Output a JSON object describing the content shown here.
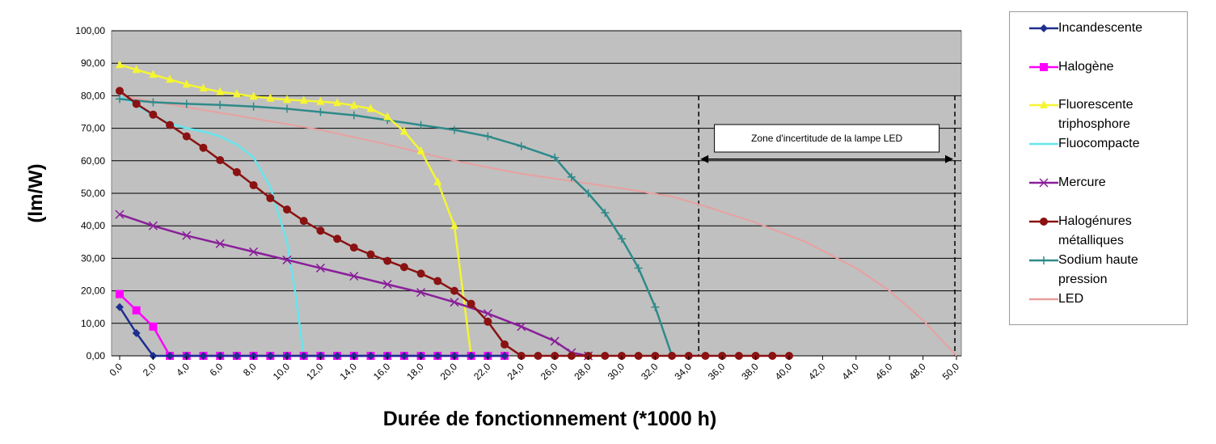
{
  "chart_data": {
    "type": "line",
    "title": "",
    "xlabel": "Durée de fonctionnement (*1000 h)",
    "ylabel": "(lm/W)",
    "xlim": [
      0,
      50
    ],
    "ylim": [
      0,
      100
    ],
    "y_ticks": [
      "0,00",
      "10,00",
      "20,00",
      "30,00",
      "40,00",
      "50,00",
      "60,00",
      "70,00",
      "80,00",
      "90,00",
      "100,00"
    ],
    "x_ticks": [
      "0,0",
      "2,0",
      "4,0",
      "6,0",
      "8,0",
      "10,0",
      "12,0",
      "14,0",
      "16,0",
      "18,0",
      "20,0",
      "22,0",
      "24,0",
      "26,0",
      "28,0",
      "30,0",
      "32,0",
      "34,0",
      "36,0",
      "38,0",
      "40,0",
      "42,0",
      "44,0",
      "46,0",
      "48,0",
      "50,0"
    ],
    "grid": "horizontal",
    "legend_position": "right",
    "background": "#c0c0c0",
    "annotation": {
      "text": "Zone d'incertitude de la lampe LED",
      "x_start": 34.6,
      "x_end": 50,
      "arrow_y": 60
    },
    "series": [
      {
        "name": "Incandescente",
        "color": "#1f2f8f",
        "marker": "diamond",
        "points": [
          [
            0,
            15
          ],
          [
            1,
            7
          ],
          [
            2,
            0
          ],
          [
            3,
            0
          ],
          [
            4,
            0
          ],
          [
            5,
            0
          ],
          [
            6,
            0
          ],
          [
            7,
            0
          ],
          [
            8,
            0
          ],
          [
            9,
            0
          ],
          [
            10,
            0
          ],
          [
            11,
            0
          ],
          [
            12,
            0
          ],
          [
            13,
            0
          ],
          [
            14,
            0
          ],
          [
            15,
            0
          ],
          [
            16,
            0
          ],
          [
            17,
            0
          ],
          [
            18,
            0
          ],
          [
            19,
            0
          ],
          [
            20,
            0
          ],
          [
            21,
            0
          ],
          [
            22,
            0
          ],
          [
            23,
            0
          ]
        ]
      },
      {
        "name": "Halogène",
        "color": "#ff00ff",
        "marker": "square",
        "points": [
          [
            0,
            19
          ],
          [
            1,
            14
          ],
          [
            2,
            9
          ],
          [
            3,
            0
          ],
          [
            4,
            0
          ],
          [
            5,
            0
          ],
          [
            6,
            0
          ],
          [
            7,
            0
          ],
          [
            8,
            0
          ],
          [
            9,
            0
          ],
          [
            10,
            0
          ],
          [
            11,
            0
          ],
          [
            12,
            0
          ],
          [
            13,
            0
          ],
          [
            14,
            0
          ],
          [
            15,
            0
          ],
          [
            16,
            0
          ],
          [
            17,
            0
          ],
          [
            18,
            0
          ],
          [
            19,
            0
          ],
          [
            20,
            0
          ],
          [
            21,
            0
          ],
          [
            22,
            0
          ],
          [
            23,
            0
          ]
        ]
      },
      {
        "name": "Fluorescente triphosphore",
        "color": "#f5f532",
        "marker": "triangle",
        "points": [
          [
            0,
            89.5
          ],
          [
            1,
            88
          ],
          [
            2,
            86.5
          ],
          [
            3,
            85
          ],
          [
            4,
            83.5
          ],
          [
            5,
            82.3
          ],
          [
            6,
            81.2
          ],
          [
            7,
            80.5
          ],
          [
            8,
            79.8
          ],
          [
            9,
            79.2
          ],
          [
            10,
            78.8
          ],
          [
            11,
            78.5
          ],
          [
            12,
            78.2
          ],
          [
            13,
            77.8
          ],
          [
            14,
            77
          ],
          [
            15,
            76
          ],
          [
            16,
            73.5
          ],
          [
            17,
            69
          ],
          [
            18,
            63
          ],
          [
            19,
            53.5
          ],
          [
            20,
            40
          ],
          [
            21,
            0
          ]
        ]
      },
      {
        "name": "Fluocompacte",
        "color": "#66e6ee",
        "marker": "none",
        "points": [
          [
            0,
            80
          ],
          [
            1,
            77
          ],
          [
            2,
            74
          ],
          [
            3,
            71.5
          ],
          [
            4,
            70
          ],
          [
            5,
            69
          ],
          [
            6,
            67.5
          ],
          [
            7,
            65
          ],
          [
            8,
            61
          ],
          [
            9,
            52
          ],
          [
            10,
            35
          ],
          [
            10.5,
            19
          ],
          [
            11,
            0
          ],
          [
            12,
            0
          ],
          [
            13,
            0
          ],
          [
            14,
            0
          ],
          [
            15,
            0
          ],
          [
            16,
            0
          ],
          [
            17,
            0
          ],
          [
            18,
            0
          ],
          [
            19,
            0
          ],
          [
            20,
            0
          ],
          [
            21,
            0
          ],
          [
            22,
            0
          ],
          [
            23,
            0
          ]
        ]
      },
      {
        "name": "Mercure",
        "color": "#8a1f9a",
        "marker": "cross",
        "points": [
          [
            0,
            43.5
          ],
          [
            2,
            40
          ],
          [
            4,
            37
          ],
          [
            6,
            34.5
          ],
          [
            8,
            32
          ],
          [
            10,
            29.5
          ],
          [
            12,
            27
          ],
          [
            14,
            24.5
          ],
          [
            16,
            22
          ],
          [
            18,
            19.5
          ],
          [
            20,
            16.5
          ],
          [
            22,
            13
          ],
          [
            24,
            9
          ],
          [
            26,
            4.5
          ],
          [
            27,
            1
          ],
          [
            28,
            0
          ]
        ]
      },
      {
        "name": "Halogénures métalliques",
        "color": "#8a1212",
        "marker": "circle",
        "points": [
          [
            0,
            81.5
          ],
          [
            1,
            77.5
          ],
          [
            2,
            74.2
          ],
          [
            3,
            71
          ],
          [
            4,
            67.5
          ],
          [
            5,
            64
          ],
          [
            6,
            60.2
          ],
          [
            7,
            56.5
          ],
          [
            8,
            52.5
          ],
          [
            9,
            48.5
          ],
          [
            10,
            45
          ],
          [
            11,
            41.5
          ],
          [
            12,
            38.5
          ],
          [
            13,
            36
          ],
          [
            14,
            33.3
          ],
          [
            15,
            31.2
          ],
          [
            16,
            29.2
          ],
          [
            17,
            27.3
          ],
          [
            18,
            25.3
          ],
          [
            19,
            23
          ],
          [
            20,
            20
          ],
          [
            21,
            16
          ],
          [
            22,
            10.5
          ],
          [
            23,
            3.5
          ],
          [
            24,
            0
          ],
          [
            25,
            0
          ],
          [
            26,
            0
          ],
          [
            27,
            0
          ],
          [
            28,
            0
          ],
          [
            29,
            0
          ],
          [
            30,
            0
          ],
          [
            31,
            0
          ],
          [
            32,
            0
          ],
          [
            33,
            0
          ],
          [
            34,
            0
          ],
          [
            35,
            0
          ],
          [
            36,
            0
          ],
          [
            37,
            0
          ],
          [
            38,
            0
          ],
          [
            39,
            0
          ],
          [
            40,
            0
          ]
        ]
      },
      {
        "name": "Sodium haute pression",
        "color": "#2f8a8a",
        "marker": "plus",
        "points": [
          [
            0,
            79
          ],
          [
            2,
            78
          ],
          [
            4,
            77.5
          ],
          [
            6,
            77.2
          ],
          [
            8,
            76.7
          ],
          [
            10,
            76
          ],
          [
            12,
            75
          ],
          [
            14,
            74
          ],
          [
            16,
            72.5
          ],
          [
            18,
            71
          ],
          [
            20,
            69.5
          ],
          [
            22,
            67.5
          ],
          [
            24,
            64.5
          ],
          [
            26,
            61
          ],
          [
            27,
            55
          ],
          [
            28,
            50
          ],
          [
            29,
            44
          ],
          [
            30,
            36
          ],
          [
            31,
            27
          ],
          [
            32,
            15
          ],
          [
            33,
            0
          ]
        ]
      },
      {
        "name": "LED",
        "color": "#e8a0a0",
        "marker": "none",
        "points": [
          [
            0,
            80
          ],
          [
            4,
            76.5
          ],
          [
            8,
            73
          ],
          [
            12,
            69.5
          ],
          [
            16,
            65
          ],
          [
            20,
            60
          ],
          [
            24,
            56
          ],
          [
            28,
            53
          ],
          [
            30,
            51.5
          ],
          [
            33,
            49
          ],
          [
            35,
            46
          ],
          [
            38,
            41
          ],
          [
            41,
            35
          ],
          [
            44,
            27
          ],
          [
            46,
            20
          ],
          [
            48,
            11
          ],
          [
            50,
            0
          ]
        ]
      }
    ]
  }
}
